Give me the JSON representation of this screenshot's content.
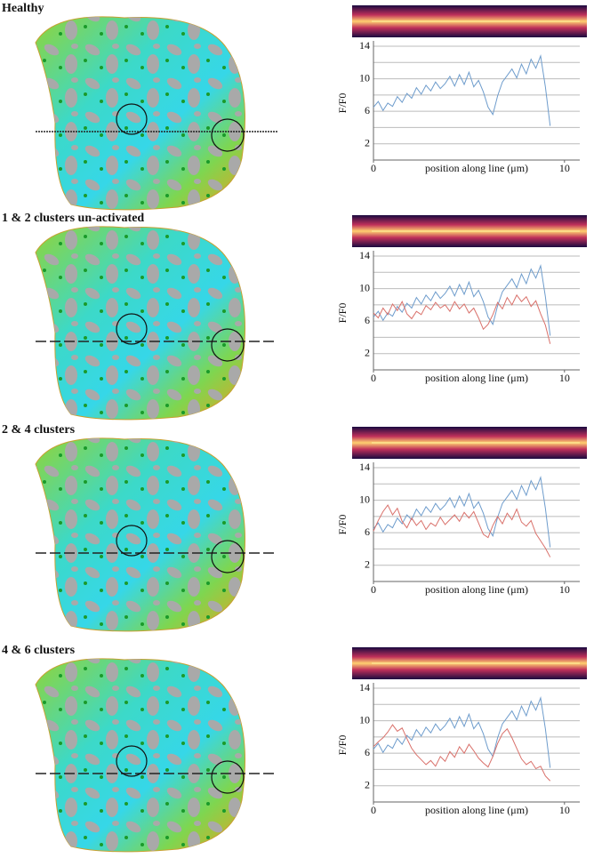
{
  "chart_data": [
    {
      "type": "line",
      "title": "Healthy",
      "ylabel": "F/F0",
      "xlabel": "position along line (μm)",
      "xlim": [
        0,
        10.8
      ],
      "xticks": [
        0,
        10
      ],
      "ylim": [
        0,
        14
      ],
      "yticks": [
        2,
        6,
        10,
        14
      ],
      "grid": true,
      "x": [
        0,
        0.25,
        0.5,
        0.75,
        1,
        1.25,
        1.5,
        1.75,
        2,
        2.25,
        2.5,
        2.75,
        3,
        3.25,
        3.5,
        3.75,
        4,
        4.25,
        4.5,
        4.75,
        5,
        5.25,
        5.5,
        5.75,
        6,
        6.25,
        6.5,
        6.75,
        7,
        7.25,
        7.5,
        7.75,
        8,
        8.25,
        8.5,
        8.75,
        9,
        9.25
      ],
      "series": [
        {
          "color": "#6e9ccc",
          "values": [
            6.5,
            7.2,
            6.1,
            7.0,
            6.6,
            7.8,
            7.1,
            8.2,
            7.6,
            8.9,
            8.1,
            9.2,
            8.5,
            9.6,
            8.8,
            9.4,
            10.3,
            9.1,
            10.5,
            9.3,
            10.8,
            9.0,
            9.8,
            8.4,
            6.5,
            5.6,
            7.9,
            9.6,
            10.4,
            11.2,
            10.1,
            11.8,
            10.6,
            12.4,
            11.3,
            12.8,
            9.0,
            4.2
          ]
        }
      ]
    },
    {
      "type": "line",
      "title": "1 & 2 clusters un-activated",
      "ylabel": "F/F0",
      "xlabel": "position along line (μm)",
      "xlim": [
        0,
        10.8
      ],
      "xticks": [
        0,
        10
      ],
      "ylim": [
        0,
        14
      ],
      "yticks": [
        2,
        6,
        10,
        14
      ],
      "grid": true,
      "x": [
        0,
        0.25,
        0.5,
        0.75,
        1,
        1.25,
        1.5,
        1.75,
        2,
        2.25,
        2.5,
        2.75,
        3,
        3.25,
        3.5,
        3.75,
        4,
        4.25,
        4.5,
        4.75,
        5,
        5.25,
        5.5,
        5.75,
        6,
        6.25,
        6.5,
        6.75,
        7,
        7.25,
        7.5,
        7.75,
        8,
        8.25,
        8.5,
        8.75,
        9,
        9.25
      ],
      "series": [
        {
          "color": "#6e9ccc",
          "values": [
            6.5,
            7.2,
            6.1,
            7.0,
            6.6,
            7.8,
            7.1,
            8.2,
            7.6,
            8.9,
            8.1,
            9.2,
            8.5,
            9.6,
            8.8,
            9.4,
            10.3,
            9.1,
            10.5,
            9.3,
            10.8,
            9.0,
            9.8,
            8.4,
            6.5,
            5.6,
            7.9,
            9.6,
            10.4,
            11.2,
            10.1,
            11.8,
            10.6,
            12.4,
            11.3,
            12.8,
            9.0,
            4.2
          ]
        },
        {
          "color": "#d9706a",
          "values": [
            7.0,
            6.4,
            7.6,
            6.8,
            8.1,
            7.3,
            8.4,
            6.9,
            6.3,
            7.2,
            6.8,
            7.9,
            7.4,
            8.3,
            7.6,
            8.0,
            7.2,
            8.4,
            7.5,
            8.1,
            7.0,
            7.6,
            6.4,
            5.0,
            5.6,
            6.8,
            8.3,
            7.5,
            8.9,
            8.0,
            9.2,
            8.4,
            9.0,
            7.8,
            8.5,
            6.9,
            5.5,
            3.2
          ]
        }
      ]
    },
    {
      "type": "line",
      "title": "2 & 4 clusters",
      "ylabel": "F/F0",
      "xlabel": "position along line (μm)",
      "xlim": [
        0,
        10.8
      ],
      "xticks": [
        0,
        10
      ],
      "ylim": [
        0,
        14
      ],
      "yticks": [
        2,
        6,
        10,
        14
      ],
      "grid": true,
      "x": [
        0,
        0.25,
        0.5,
        0.75,
        1,
        1.25,
        1.5,
        1.75,
        2,
        2.25,
        2.5,
        2.75,
        3,
        3.25,
        3.5,
        3.75,
        4,
        4.25,
        4.5,
        4.75,
        5,
        5.25,
        5.5,
        5.75,
        6,
        6.25,
        6.5,
        6.75,
        7,
        7.25,
        7.5,
        7.75,
        8,
        8.25,
        8.5,
        8.75,
        9,
        9.25
      ],
      "series": [
        {
          "color": "#6e9ccc",
          "values": [
            6.5,
            7.2,
            6.1,
            7.0,
            6.6,
            7.8,
            7.1,
            8.2,
            7.6,
            8.9,
            8.1,
            9.2,
            8.5,
            9.6,
            8.8,
            9.4,
            10.3,
            9.1,
            10.5,
            9.3,
            10.8,
            9.0,
            9.8,
            8.4,
            6.5,
            5.6,
            7.9,
            9.6,
            10.4,
            11.2,
            10.1,
            11.8,
            10.6,
            12.4,
            11.3,
            12.8,
            9.0,
            4.2
          ]
        },
        {
          "color": "#d9706a",
          "values": [
            6.2,
            7.5,
            8.6,
            9.4,
            8.2,
            9.0,
            7.4,
            6.6,
            7.8,
            6.9,
            7.5,
            6.4,
            7.2,
            6.8,
            7.9,
            7.0,
            7.6,
            8.2,
            7.4,
            8.5,
            7.8,
            8.6,
            7.2,
            5.8,
            5.4,
            6.9,
            8.0,
            7.1,
            8.4,
            7.6,
            8.9,
            7.3,
            6.8,
            7.5,
            5.9,
            5.0,
            4.1,
            3.0
          ]
        }
      ]
    },
    {
      "type": "line",
      "title": "4 & 6 clusters",
      "ylabel": "F/F0",
      "xlabel": "position along line (μm)",
      "xlim": [
        0,
        10.8
      ],
      "xticks": [
        0,
        10
      ],
      "ylim": [
        0,
        14
      ],
      "yticks": [
        2,
        6,
        10,
        14
      ],
      "grid": true,
      "x": [
        0,
        0.25,
        0.5,
        0.75,
        1,
        1.25,
        1.5,
        1.75,
        2,
        2.25,
        2.5,
        2.75,
        3,
        3.25,
        3.5,
        3.75,
        4,
        4.25,
        4.5,
        4.75,
        5,
        5.25,
        5.5,
        5.75,
        6,
        6.25,
        6.5,
        6.75,
        7,
        7.25,
        7.5,
        7.75,
        8,
        8.25,
        8.5,
        8.75,
        9,
        9.25
      ],
      "series": [
        {
          "color": "#6e9ccc",
          "values": [
            6.5,
            7.2,
            6.1,
            7.0,
            6.6,
            7.8,
            7.1,
            8.2,
            7.6,
            8.9,
            8.1,
            9.2,
            8.5,
            9.6,
            8.8,
            9.4,
            10.3,
            9.1,
            10.5,
            9.3,
            10.8,
            9.0,
            9.8,
            8.4,
            6.5,
            5.6,
            7.9,
            9.6,
            10.4,
            11.2,
            10.1,
            11.8,
            10.6,
            12.4,
            11.3,
            12.8,
            9.0,
            4.2
          ]
        },
        {
          "color": "#d9706a",
          "values": [
            6.8,
            7.4,
            7.9,
            8.6,
            9.5,
            8.7,
            9.1,
            7.8,
            6.6,
            5.8,
            5.2,
            4.6,
            5.1,
            4.4,
            5.6,
            5.0,
            6.2,
            5.5,
            6.8,
            6.0,
            7.1,
            6.3,
            5.4,
            4.8,
            4.3,
            5.6,
            7.2,
            8.4,
            9.0,
            7.9,
            6.6,
            5.3,
            4.6,
            5.0,
            4.1,
            4.4,
            3.2,
            2.6
          ]
        }
      ]
    }
  ]
}
